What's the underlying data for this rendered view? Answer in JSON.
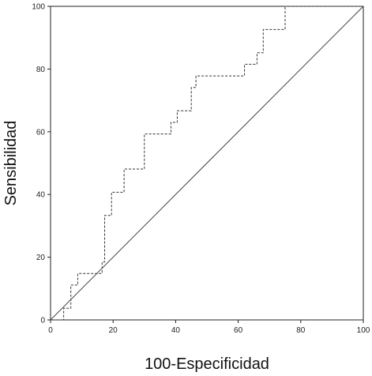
{
  "chart_data": {
    "type": "line",
    "xlabel": "100-Especificidad",
    "ylabel": "Sensibilidad",
    "xlim": [
      0,
      100
    ],
    "ylim": [
      0,
      100
    ],
    "xticks": [
      0,
      20,
      40,
      60,
      80,
      100
    ],
    "yticks": [
      0,
      20,
      40,
      60,
      80,
      100
    ],
    "grid": false,
    "series": [
      {
        "style": "dashed",
        "color": "#333333",
        "x": [
          0,
          4.2,
          4.2,
          6.5,
          6.5,
          8.7,
          8.7,
          16.5,
          16.5,
          17.3,
          17.3,
          19.5,
          19.5,
          23.5,
          23.5,
          30.0,
          30.0,
          38.5,
          38.5,
          40.5,
          40.5,
          45.0,
          45.0,
          46.5,
          46.5,
          62.0,
          62.0,
          66.0,
          66.0,
          68.0,
          68.0,
          75.0,
          75.0,
          100
        ],
        "y": [
          0,
          0,
          3.7,
          3.7,
          11.1,
          11.1,
          14.8,
          14.8,
          18.5,
          18.5,
          33.3,
          33.3,
          40.7,
          40.7,
          48.1,
          48.1,
          59.3,
          59.3,
          63.0,
          63.0,
          66.7,
          66.7,
          74.1,
          74.1,
          77.8,
          77.8,
          81.5,
          81.5,
          85.2,
          85.2,
          92.6,
          92.6,
          100,
          100
        ]
      },
      {
        "style": "solid",
        "color": "#444444",
        "x": [
          0,
          100
        ],
        "y": [
          0,
          100
        ]
      }
    ]
  }
}
